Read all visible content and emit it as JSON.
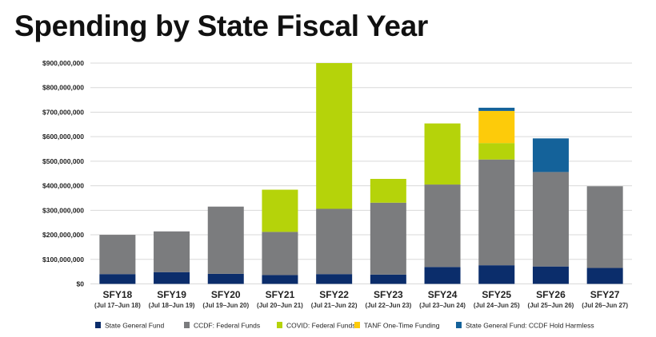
{
  "chart_data": {
    "type": "bar",
    "stacked": true,
    "title": "Spending by State Fiscal Year",
    "xlabel": "",
    "ylabel": "",
    "ylim": [
      0,
      900000000
    ],
    "yticks": [
      0,
      100000000,
      200000000,
      300000000,
      400000000,
      500000000,
      600000000,
      700000000,
      800000000,
      900000000
    ],
    "ytick_labels": [
      "$0",
      "$100,000,000",
      "$200,000,000",
      "$300,000,000",
      "$400,000,000",
      "$500,000,000",
      "$600,000,000",
      "$700,000,000",
      "$800,000,000",
      "$900,000,000"
    ],
    "grid": true,
    "legend_position": "bottom",
    "categories": [
      "SFY18",
      "SFY19",
      "SFY20",
      "SFY21",
      "SFY22",
      "SFY23",
      "SFY24",
      "SFY25",
      "SFY26",
      "SFY27"
    ],
    "category_subtitles": [
      "(Jul 17–Jun 18)",
      "(Jul 18–Jun 19)",
      "(Jul 19–Jun 20)",
      "(Jul 20–Jun 21)",
      "(Jul 21–Jun 22)",
      "(Jul 22–Jun 23)",
      "(Jul 23–Jun 24)",
      "(Jul 24–Jun 25)",
      "(Jul 25–Jun 26)",
      "(Jul 26–Jun 27)"
    ],
    "series": [
      {
        "name": "State General Fund",
        "color": "#0b2d6b",
        "values": [
          40000000,
          48000000,
          41000000,
          36000000,
          40000000,
          38000000,
          69000000,
          76000000,
          71000000,
          65000000
        ]
      },
      {
        "name": "CCDF: Federal Funds",
        "color": "#7b7c7e",
        "values": [
          160000000,
          166000000,
          274000000,
          176000000,
          266000000,
          293000000,
          336000000,
          431000000,
          385000000,
          333000000
        ]
      },
      {
        "name": "COVID: Federal Funds",
        "color": "#b5d30a",
        "values": [
          0,
          0,
          0,
          172000000,
          594000000,
          97000000,
          249000000,
          67000000,
          0,
          0
        ]
      },
      {
        "name": "TANF One-Time Funding",
        "color": "#fdcb0a",
        "values": [
          0,
          0,
          0,
          0,
          0,
          0,
          0,
          131000000,
          0,
          0
        ]
      },
      {
        "name": "State General Fund: CCDF Hold Harmless",
        "color": "#14629a",
        "values": [
          0,
          0,
          0,
          0,
          0,
          0,
          0,
          13000000,
          137000000,
          0
        ]
      }
    ]
  }
}
